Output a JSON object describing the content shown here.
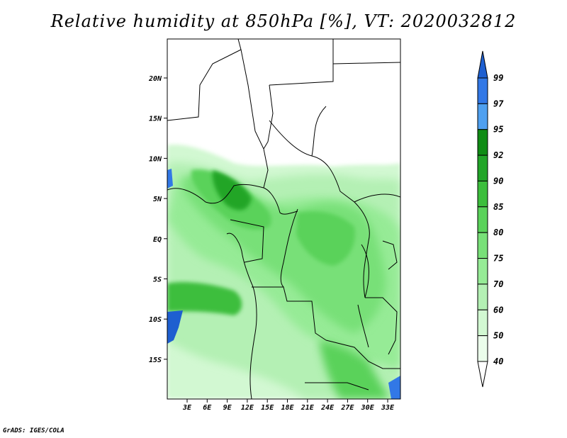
{
  "title": "Relative humidity at 850hPa [%], VT: 2020032812",
  "credit": "GrADS: IGES/COLA",
  "lat_labels": [
    "20N",
    "15N",
    "10N",
    "5N",
    "EQ",
    "5S",
    "10S",
    "15S"
  ],
  "lon_labels": [
    "3E",
    "6E",
    "9E",
    "12E",
    "15E",
    "18E",
    "21E",
    "24E",
    "27E",
    "30E",
    "33E"
  ],
  "colorbar": {
    "labels": [
      "99",
      "97",
      "95",
      "92",
      "90",
      "85",
      "80",
      "75",
      "70",
      "60",
      "50",
      "40"
    ],
    "colors": [
      "#1e5fd0",
      "#3278e6",
      "#4fa0f0",
      "#0f8c14",
      "#22a528",
      "#3cbe3c",
      "#5ad25a",
      "#78e078",
      "#96eb96",
      "#b4f0b4",
      "#d2f8d2",
      "#ebfdeb"
    ]
  }
}
